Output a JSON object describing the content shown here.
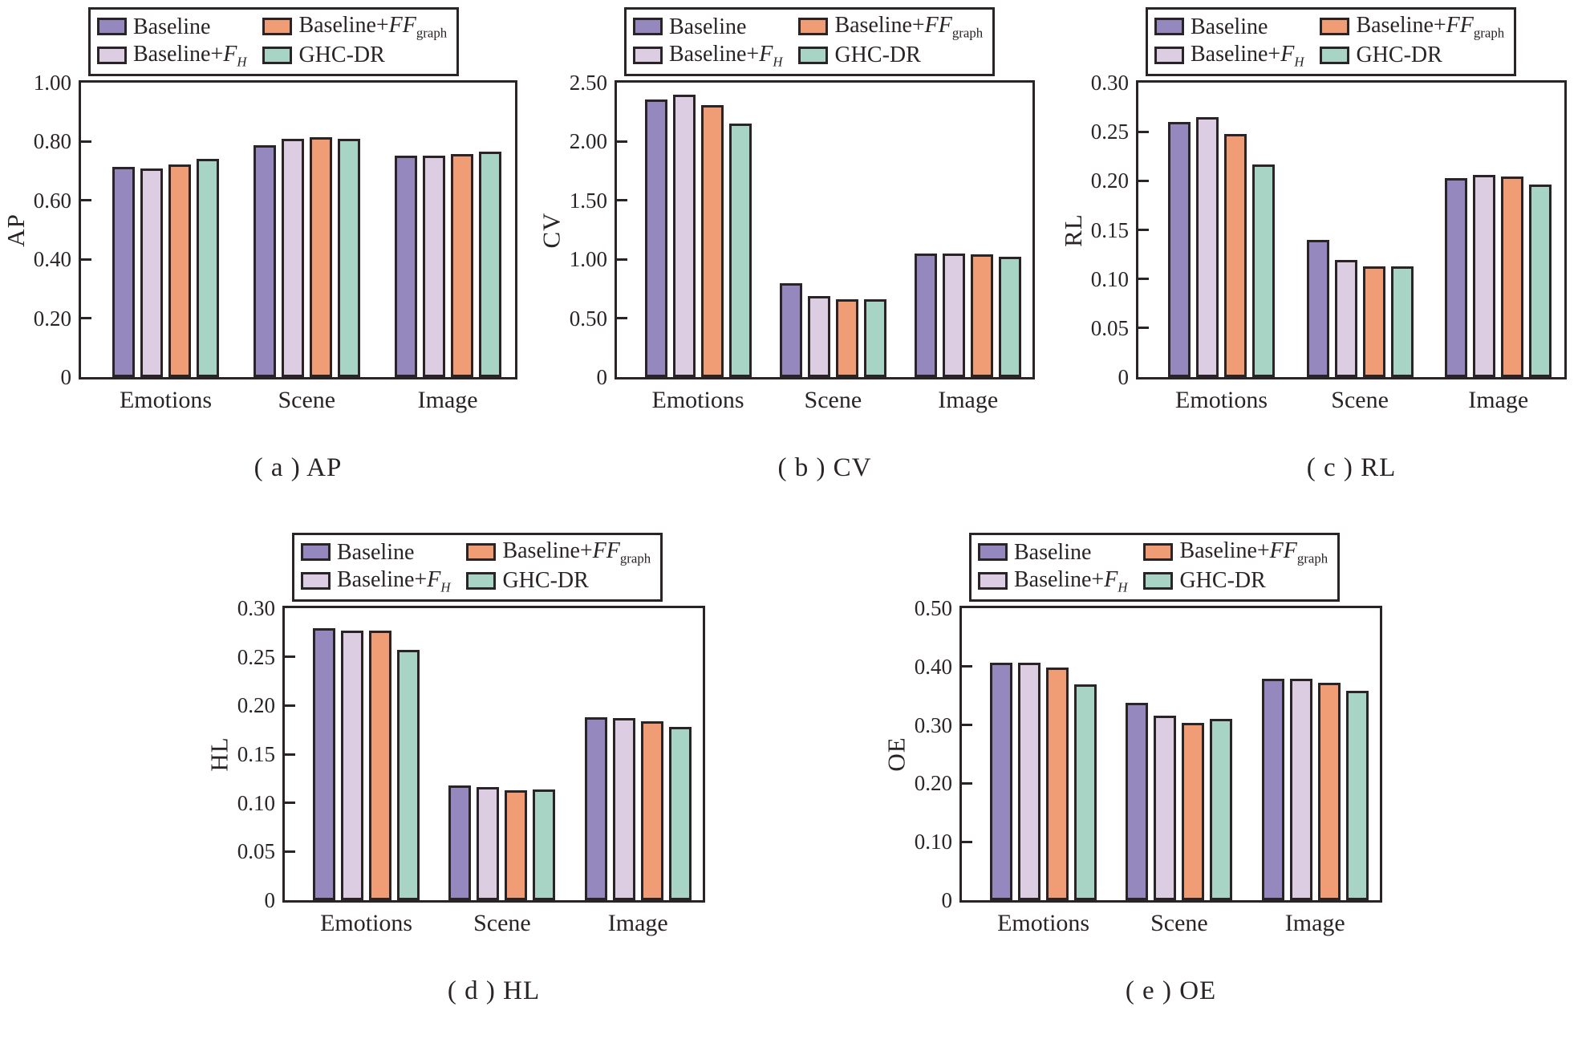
{
  "figure": {
    "background": "#ffffff",
    "ink_color": "#2b2426",
    "legend_order": [
      "Baseline",
      "Baseline+FF_graph",
      "Baseline+F_H",
      "GHC-DR"
    ],
    "bar_order": [
      "Baseline",
      "Baseline+F_H",
      "Baseline+FF_graph",
      "GHC-DR"
    ],
    "series_styles": [
      {
        "name": "Baseline",
        "color": "#9488BE",
        "label": {
          "prefix": "Baseline",
          "italic": "",
          "sub": "",
          "sub_italic": false
        }
      },
      {
        "name": "Baseline+F_H",
        "color": "#DCCDE2",
        "label": {
          "prefix": "Baseline+",
          "italic": "F",
          "sub": "H",
          "sub_italic": true
        }
      },
      {
        "name": "Baseline+FF_graph",
        "color": "#F09C74",
        "label": {
          "prefix": "Baseline+",
          "italic": "FF",
          "sub": "graph",
          "sub_italic": false
        }
      },
      {
        "name": "GHC-DR",
        "color": "#A7D4C4",
        "label": {
          "prefix": "GHC-DR",
          "italic": "",
          "sub": "",
          "sub_italic": false
        }
      }
    ]
  },
  "chart_data": [
    {
      "id": "a",
      "type": "bar",
      "caption": "( a ) AP",
      "ylabel": "AP",
      "categories": [
        "Emotions",
        "Scene",
        "Image"
      ],
      "ylim": [
        0,
        1.0
      ],
      "grid": false,
      "legend_position": "upper-left-outside",
      "yticks": [
        {
          "label": "1.00",
          "value": 1.0
        },
        {
          "label": "0.80",
          "value": 0.8
        },
        {
          "label": "0.60",
          "value": 0.6
        },
        {
          "label": "0.40",
          "value": 0.4
        },
        {
          "label": "0.20",
          "value": 0.2
        },
        {
          "label": "0",
          "value": 0
        }
      ],
      "series": [
        {
          "name": "Baseline",
          "values": [
            0.715,
            0.788,
            0.753
          ]
        },
        {
          "name": "Baseline+F_H",
          "values": [
            0.708,
            0.808,
            0.753
          ]
        },
        {
          "name": "Baseline+FF_graph",
          "values": [
            0.722,
            0.815,
            0.757
          ]
        },
        {
          "name": "GHC-DR",
          "values": [
            0.742,
            0.81,
            0.765
          ]
        }
      ]
    },
    {
      "id": "b",
      "type": "bar",
      "caption": "( b ) CV",
      "ylabel": "CV",
      "categories": [
        "Emotions",
        "Scene",
        "Image"
      ],
      "ylim": [
        0,
        2.5
      ],
      "grid": false,
      "legend_position": "upper-left-outside",
      "yticks": [
        {
          "label": "2.50",
          "value": 2.5
        },
        {
          "label": "2.00",
          "value": 2.0
        },
        {
          "label": "1.50",
          "value": 1.5
        },
        {
          "label": "1.00",
          "value": 1.0
        },
        {
          "label": "0.50",
          "value": 0.5
        },
        {
          "label": "0",
          "value": 0
        }
      ],
      "series": [
        {
          "name": "Baseline",
          "values": [
            2.36,
            0.8,
            1.05
          ]
        },
        {
          "name": "Baseline+F_H",
          "values": [
            2.4,
            0.69,
            1.05
          ]
        },
        {
          "name": "Baseline+FF_graph",
          "values": [
            2.31,
            0.66,
            1.04
          ]
        },
        {
          "name": "GHC-DR",
          "values": [
            2.15,
            0.66,
            1.02
          ]
        }
      ]
    },
    {
      "id": "c",
      "type": "bar",
      "caption": "( c ) RL",
      "ylabel": "RL",
      "categories": [
        "Emotions",
        "Scene",
        "Image"
      ],
      "ylim": [
        0,
        0.3
      ],
      "grid": false,
      "legend_position": "upper-left-outside",
      "yticks": [
        {
          "label": "0.30",
          "value": 0.3
        },
        {
          "label": "0.25",
          "value": 0.25
        },
        {
          "label": "0.20",
          "value": 0.2
        },
        {
          "label": "0.15",
          "value": 0.15
        },
        {
          "label": "0.10",
          "value": 0.1
        },
        {
          "label": "0.05",
          "value": 0.05
        },
        {
          "label": "0",
          "value": 0
        }
      ],
      "series": [
        {
          "name": "Baseline",
          "values": [
            0.26,
            0.14,
            0.203
          ]
        },
        {
          "name": "Baseline+F_H",
          "values": [
            0.265,
            0.119,
            0.206
          ]
        },
        {
          "name": "Baseline+FF_graph",
          "values": [
            0.248,
            0.113,
            0.204
          ]
        },
        {
          "name": "GHC-DR",
          "values": [
            0.217,
            0.113,
            0.196
          ]
        }
      ]
    },
    {
      "id": "d",
      "type": "bar",
      "caption": "( d ) HL",
      "ylabel": "HL",
      "categories": [
        "Emotions",
        "Scene",
        "Image"
      ],
      "ylim": [
        0,
        0.3
      ],
      "grid": false,
      "legend_position": "upper-left-outside",
      "yticks": [
        {
          "label": "0.30",
          "value": 0.3
        },
        {
          "label": "0.25",
          "value": 0.25
        },
        {
          "label": "0.20",
          "value": 0.2
        },
        {
          "label": "0.15",
          "value": 0.15
        },
        {
          "label": "0.10",
          "value": 0.1
        },
        {
          "label": "0.05",
          "value": 0.05
        },
        {
          "label": "0",
          "value": 0
        }
      ],
      "series": [
        {
          "name": "Baseline",
          "values": [
            0.279,
            0.118,
            0.188
          ]
        },
        {
          "name": "Baseline+F_H",
          "values": [
            0.277,
            0.116,
            0.187
          ]
        },
        {
          "name": "Baseline+FF_graph",
          "values": [
            0.277,
            0.113,
            0.184
          ]
        },
        {
          "name": "GHC-DR",
          "values": [
            0.257,
            0.114,
            0.178
          ]
        }
      ]
    },
    {
      "id": "e",
      "type": "bar",
      "caption": "( e ) OE",
      "ylabel": "OE",
      "categories": [
        "Emotions",
        "Scene",
        "Image"
      ],
      "ylim": [
        0,
        0.5
      ],
      "grid": false,
      "legend_position": "upper-left-outside",
      "yticks": [
        {
          "label": "0.50",
          "value": 0.5
        },
        {
          "label": "0.40",
          "value": 0.4
        },
        {
          "label": "0.30",
          "value": 0.3
        },
        {
          "label": "0.20",
          "value": 0.2
        },
        {
          "label": "0.10",
          "value": 0.1
        },
        {
          "label": "0",
          "value": 0
        }
      ],
      "series": [
        {
          "name": "Baseline",
          "values": [
            0.406,
            0.338,
            0.379
          ]
        },
        {
          "name": "Baseline+F_H",
          "values": [
            0.407,
            0.316,
            0.379
          ]
        },
        {
          "name": "Baseline+FF_graph",
          "values": [
            0.398,
            0.303,
            0.372
          ]
        },
        {
          "name": "GHC-DR",
          "values": [
            0.369,
            0.311,
            0.358
          ]
        }
      ]
    }
  ]
}
